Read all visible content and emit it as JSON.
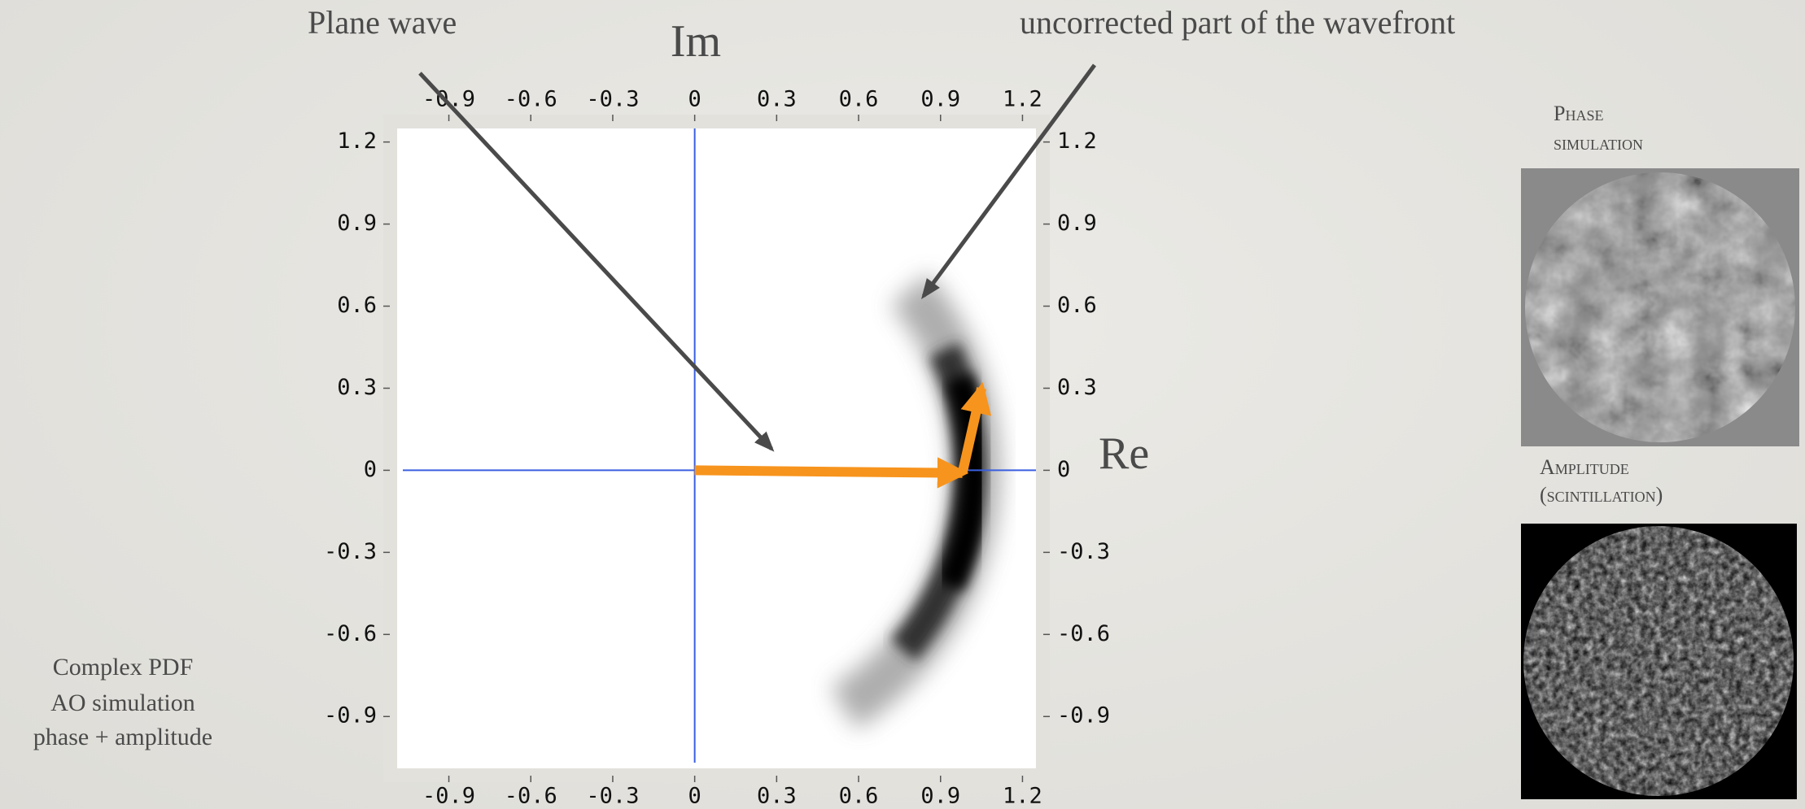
{
  "annotations": {
    "plane_wave": "Plane wave",
    "uncorrected": "uncorrected part of the wavefront",
    "caption": [
      "Complex PDF",
      "AO simulation",
      "phase + amplitude"
    ]
  },
  "side_panels": [
    {
      "title": "Phase",
      "subtitle": "simulation"
    },
    {
      "title": "Amplitude",
      "subtitle": "(scintillation)"
    }
  ],
  "chart_data": {
    "type": "density",
    "xlabel": "Re",
    "ylabel": "Im",
    "xlim": [
      -1.14,
      1.3
    ],
    "ylim": [
      -1.14,
      1.3
    ],
    "xticks": [
      -0.9,
      -0.6,
      -0.3,
      0,
      0.3,
      0.6,
      0.9,
      1.2
    ],
    "yticks": [
      -0.9,
      -0.6,
      -0.3,
      0,
      0.3,
      0.6,
      0.9,
      1.2
    ],
    "axes_color": "#3a5fe0",
    "vectors": [
      {
        "color": "#f7941d",
        "x": [
          0,
          0.98
        ],
        "y": [
          0,
          -0.01
        ]
      },
      {
        "color": "#f7941d",
        "x": [
          0.98,
          1.05
        ],
        "y": [
          -0.01,
          0.3
        ]
      }
    ]
  }
}
